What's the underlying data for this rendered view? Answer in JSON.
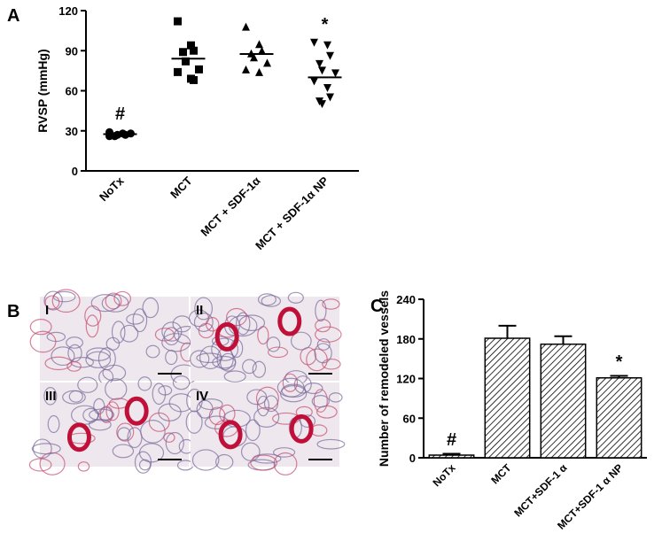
{
  "chart_data": [
    {
      "type": "dotplot",
      "panel": "A",
      "ylabel": "RVSP (mmHg)",
      "categories": [
        "NoTx",
        "MCT",
        "MCT + SDF-1α",
        "MCT + SDF-1α NP"
      ],
      "markers": [
        "circle",
        "square",
        "triangle",
        "triangle-down"
      ],
      "points": [
        [
          29,
          28,
          27,
          26,
          27,
          28,
          26
        ],
        [
          112,
          94,
          90,
          89,
          82,
          76,
          74,
          69,
          68
        ],
        [
          108,
          95,
          90,
          88,
          85,
          81,
          76,
          74
        ],
        [
          96,
          94,
          86,
          80,
          75,
          73,
          67,
          62,
          55,
          52,
          50
        ]
      ],
      "means": [
        27.5,
        84,
        87.5,
        70
      ],
      "annotations": [
        "#",
        null,
        null,
        "*"
      ],
      "color": "#000000",
      "ylim": [
        0,
        120
      ],
      "yticks": [
        0,
        30,
        60,
        90,
        120
      ]
    },
    {
      "type": "bar",
      "panel": "C",
      "ylabel": "Number of remodeled vessels",
      "categories": [
        "NoTx",
        "MCT",
        "MCT+SDF-1 α",
        "MCT+SDF-1 α NP"
      ],
      "values": [
        4,
        181,
        172,
        121
      ],
      "errors": [
        2,
        19,
        12,
        3
      ],
      "annotations": [
        "#",
        null,
        null,
        "*"
      ],
      "color": "#000000",
      "ylim": [
        0,
        240
      ],
      "yticks": [
        0,
        60,
        120,
        180,
        240
      ]
    }
  ],
  "images": {
    "panel": "B",
    "labels": [
      "I",
      "II",
      "III",
      "IV"
    ]
  }
}
